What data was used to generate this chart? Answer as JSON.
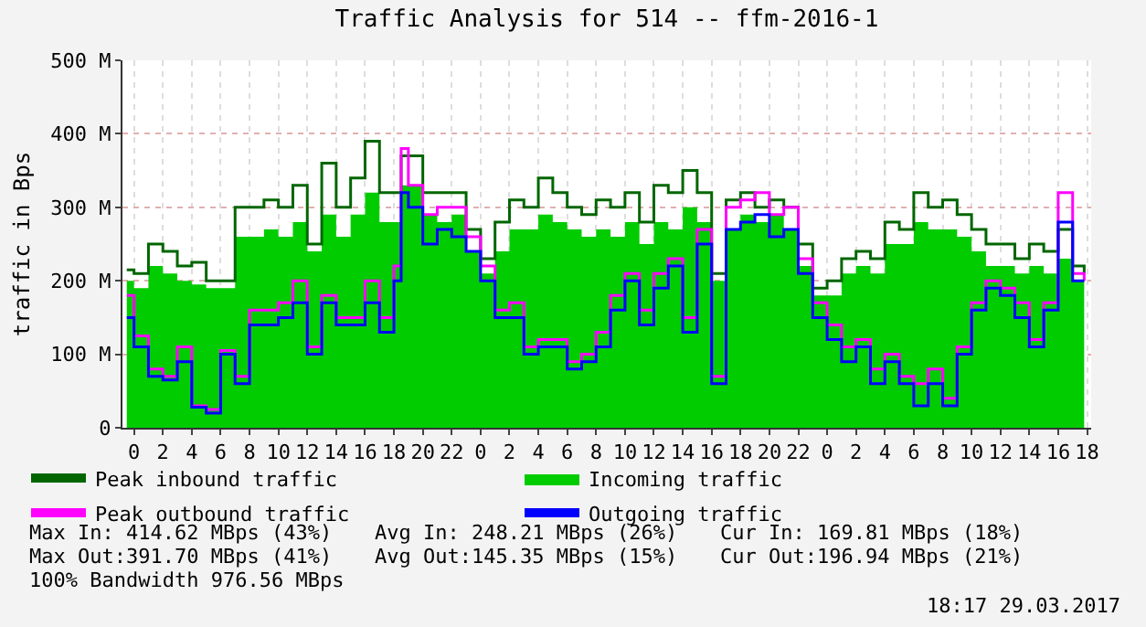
{
  "chart_data": {
    "type": "step",
    "title": "Traffic Analysis for 514 -- ffm-2016-1",
    "ylabel": "traffic in Bps",
    "x": [
      "2017-03-26T23:30",
      "2017-03-27T00:00",
      "2017-03-27T01:00",
      "2017-03-27T02:00",
      "2017-03-27T03:00",
      "2017-03-27T04:00",
      "2017-03-27T05:00",
      "2017-03-27T06:00",
      "2017-03-27T07:00",
      "2017-03-27T08:00",
      "2017-03-27T09:00",
      "2017-03-27T10:00",
      "2017-03-27T11:00",
      "2017-03-27T12:00",
      "2017-03-27T13:00",
      "2017-03-27T14:00",
      "2017-03-27T15:00",
      "2017-03-27T16:00",
      "2017-03-27T17:00",
      "2017-03-27T18:00",
      "2017-03-27T18:30",
      "2017-03-27T19:00",
      "2017-03-27T20:00",
      "2017-03-27T21:00",
      "2017-03-27T22:00",
      "2017-03-27T23:00",
      "2017-03-28T00:00",
      "2017-03-28T01:00",
      "2017-03-28T02:00",
      "2017-03-28T03:00",
      "2017-03-28T04:00",
      "2017-03-28T05:00",
      "2017-03-28T06:00",
      "2017-03-28T07:00",
      "2017-03-28T08:00",
      "2017-03-28T09:00",
      "2017-03-28T10:00",
      "2017-03-28T11:00",
      "2017-03-28T12:00",
      "2017-03-28T13:00",
      "2017-03-28T14:00",
      "2017-03-28T15:00",
      "2017-03-28T16:00",
      "2017-03-28T17:00",
      "2017-03-28T18:00",
      "2017-03-28T19:00",
      "2017-03-28T20:00",
      "2017-03-28T21:00",
      "2017-03-28T22:00",
      "2017-03-28T23:00",
      "2017-03-29T00:00",
      "2017-03-29T01:00",
      "2017-03-29T02:00",
      "2017-03-29T03:00",
      "2017-03-29T04:00",
      "2017-03-29T05:00",
      "2017-03-29T06:00",
      "2017-03-29T07:00",
      "2017-03-29T08:00",
      "2017-03-29T09:00",
      "2017-03-29T10:00",
      "2017-03-29T11:00",
      "2017-03-29T12:00",
      "2017-03-29T13:00",
      "2017-03-29T14:00",
      "2017-03-29T15:00",
      "2017-03-29T16:00",
      "2017-03-29T17:00",
      "2017-03-29T17:48"
    ],
    "series": [
      {
        "name": "Peak inbound traffic",
        "type": "step",
        "color": "#006600",
        "values": [
          215,
          210,
          250,
          240,
          220,
          225,
          200,
          200,
          300,
          300,
          310,
          300,
          330,
          250,
          360,
          300,
          340,
          390,
          320,
          320,
          370,
          370,
          320,
          320,
          320,
          270,
          230,
          280,
          310,
          300,
          340,
          320,
          300,
          290,
          310,
          300,
          320,
          280,
          330,
          320,
          350,
          320,
          210,
          310,
          320,
          300,
          310,
          300,
          250,
          190,
          200,
          230,
          240,
          230,
          280,
          270,
          320,
          300,
          310,
          290,
          270,
          250,
          250,
          230,
          250,
          240,
          270,
          220,
          210
        ]
      },
      {
        "name": "Incoming traffic",
        "type": "area",
        "color": "#00cc00",
        "values": [
          200,
          190,
          220,
          210,
          200,
          195,
          190,
          190,
          260,
          260,
          270,
          260,
          280,
          240,
          290,
          260,
          290,
          320,
          280,
          280,
          330,
          330,
          290,
          280,
          290,
          240,
          210,
          240,
          270,
          270,
          290,
          280,
          270,
          260,
          270,
          260,
          280,
          250,
          280,
          270,
          300,
          280,
          200,
          270,
          290,
          280,
          290,
          270,
          220,
          180,
          180,
          210,
          220,
          210,
          250,
          250,
          280,
          270,
          270,
          260,
          240,
          220,
          220,
          210,
          220,
          210,
          230,
          200,
          175
        ]
      },
      {
        "name": "Peak outbound traffic",
        "type": "step",
        "color": "#ff00ff",
        "values": [
          180,
          125,
          80,
          70,
          110,
          30,
          25,
          105,
          70,
          160,
          160,
          170,
          200,
          110,
          180,
          150,
          150,
          200,
          150,
          220,
          380,
          330,
          290,
          300,
          300,
          260,
          220,
          160,
          170,
          110,
          120,
          120,
          90,
          100,
          130,
          180,
          210,
          160,
          210,
          230,
          150,
          270,
          70,
          300,
          310,
          320,
          290,
          300,
          230,
          170,
          140,
          110,
          120,
          80,
          100,
          70,
          60,
          80,
          40,
          110,
          170,
          200,
          190,
          170,
          120,
          170,
          320,
          210,
          200
        ]
      },
      {
        "name": "Outgoing traffic",
        "type": "step",
        "color": "#0000ff",
        "values": [
          150,
          110,
          70,
          65,
          90,
          28,
          20,
          100,
          60,
          140,
          140,
          150,
          170,
          100,
          170,
          140,
          140,
          170,
          130,
          200,
          320,
          300,
          250,
          270,
          260,
          240,
          200,
          150,
          150,
          100,
          110,
          110,
          80,
          90,
          110,
          160,
          200,
          140,
          190,
          220,
          130,
          250,
          60,
          270,
          280,
          290,
          260,
          270,
          210,
          150,
          120,
          90,
          110,
          60,
          90,
          60,
          30,
          60,
          30,
          100,
          160,
          190,
          180,
          150,
          110,
          160,
          280,
          200,
          200
        ]
      }
    ],
    "xlim": [
      "2017-03-26T23:12",
      "2017-03-29T18:17"
    ],
    "xticks": [
      {
        "value": "2017-03-27T00:00",
        "label": "0"
      },
      {
        "value": "2017-03-27T02:00",
        "label": "2"
      },
      {
        "value": "2017-03-27T04:00",
        "label": "4"
      },
      {
        "value": "2017-03-27T06:00",
        "label": "6"
      },
      {
        "value": "2017-03-27T08:00",
        "label": "8"
      },
      {
        "value": "2017-03-27T10:00",
        "label": "10"
      },
      {
        "value": "2017-03-27T12:00",
        "label": "12"
      },
      {
        "value": "2017-03-27T14:00",
        "label": "14"
      },
      {
        "value": "2017-03-27T16:00",
        "label": "16"
      },
      {
        "value": "2017-03-27T18:00",
        "label": "18"
      },
      {
        "value": "2017-03-27T20:00",
        "label": "20"
      },
      {
        "value": "2017-03-27T22:00",
        "label": "22"
      },
      {
        "value": "2017-03-28T00:00",
        "label": "0"
      },
      {
        "value": "2017-03-28T02:00",
        "label": "2"
      },
      {
        "value": "2017-03-28T04:00",
        "label": "4"
      },
      {
        "value": "2017-03-28T06:00",
        "label": "6"
      },
      {
        "value": "2017-03-28T08:00",
        "label": "8"
      },
      {
        "value": "2017-03-28T10:00",
        "label": "10"
      },
      {
        "value": "2017-03-28T12:00",
        "label": "12"
      },
      {
        "value": "2017-03-28T14:00",
        "label": "14"
      },
      {
        "value": "2017-03-28T16:00",
        "label": "16"
      },
      {
        "value": "2017-03-28T18:00",
        "label": "18"
      },
      {
        "value": "2017-03-28T20:00",
        "label": "20"
      },
      {
        "value": "2017-03-28T22:00",
        "label": "22"
      },
      {
        "value": "2017-03-29T00:00",
        "label": "0"
      },
      {
        "value": "2017-03-29T02:00",
        "label": "2"
      },
      {
        "value": "2017-03-29T04:00",
        "label": "4"
      },
      {
        "value": "2017-03-29T06:00",
        "label": "6"
      },
      {
        "value": "2017-03-29T08:00",
        "label": "8"
      },
      {
        "value": "2017-03-29T10:00",
        "label": "10"
      },
      {
        "value": "2017-03-29T12:00",
        "label": "12"
      },
      {
        "value": "2017-03-29T14:00",
        "label": "14"
      },
      {
        "value": "2017-03-29T16:00",
        "label": "16"
      },
      {
        "value": "2017-03-29T18:00",
        "label": "18"
      }
    ],
    "ylim": [
      0,
      500
    ],
    "yticks": [
      0,
      {
        "value": 100,
        "label": "100 M"
      },
      {
        "value": 200,
        "label": "200 M"
      },
      {
        "value": 300,
        "label": "300 M"
      },
      {
        "value": 400,
        "label": "400 M"
      },
      {
        "value": 500,
        "label": "500 M"
      }
    ],
    "grid": true,
    "legend": "bottom",
    "annotations": [
      "Max In: 414.62 MBps (43%)",
      "Avg In: 248.21 MBps (26%)",
      "Cur In: 169.81 MBps (18%)",
      "Max Out:391.70 MBps (41%)",
      "Avg Out:145.35 MBps (15%)",
      "Cur Out:196.94 MBps (21%)",
      "100% Bandwidth 976.56 MBps",
      "18:17 29.03.2017"
    ]
  }
}
